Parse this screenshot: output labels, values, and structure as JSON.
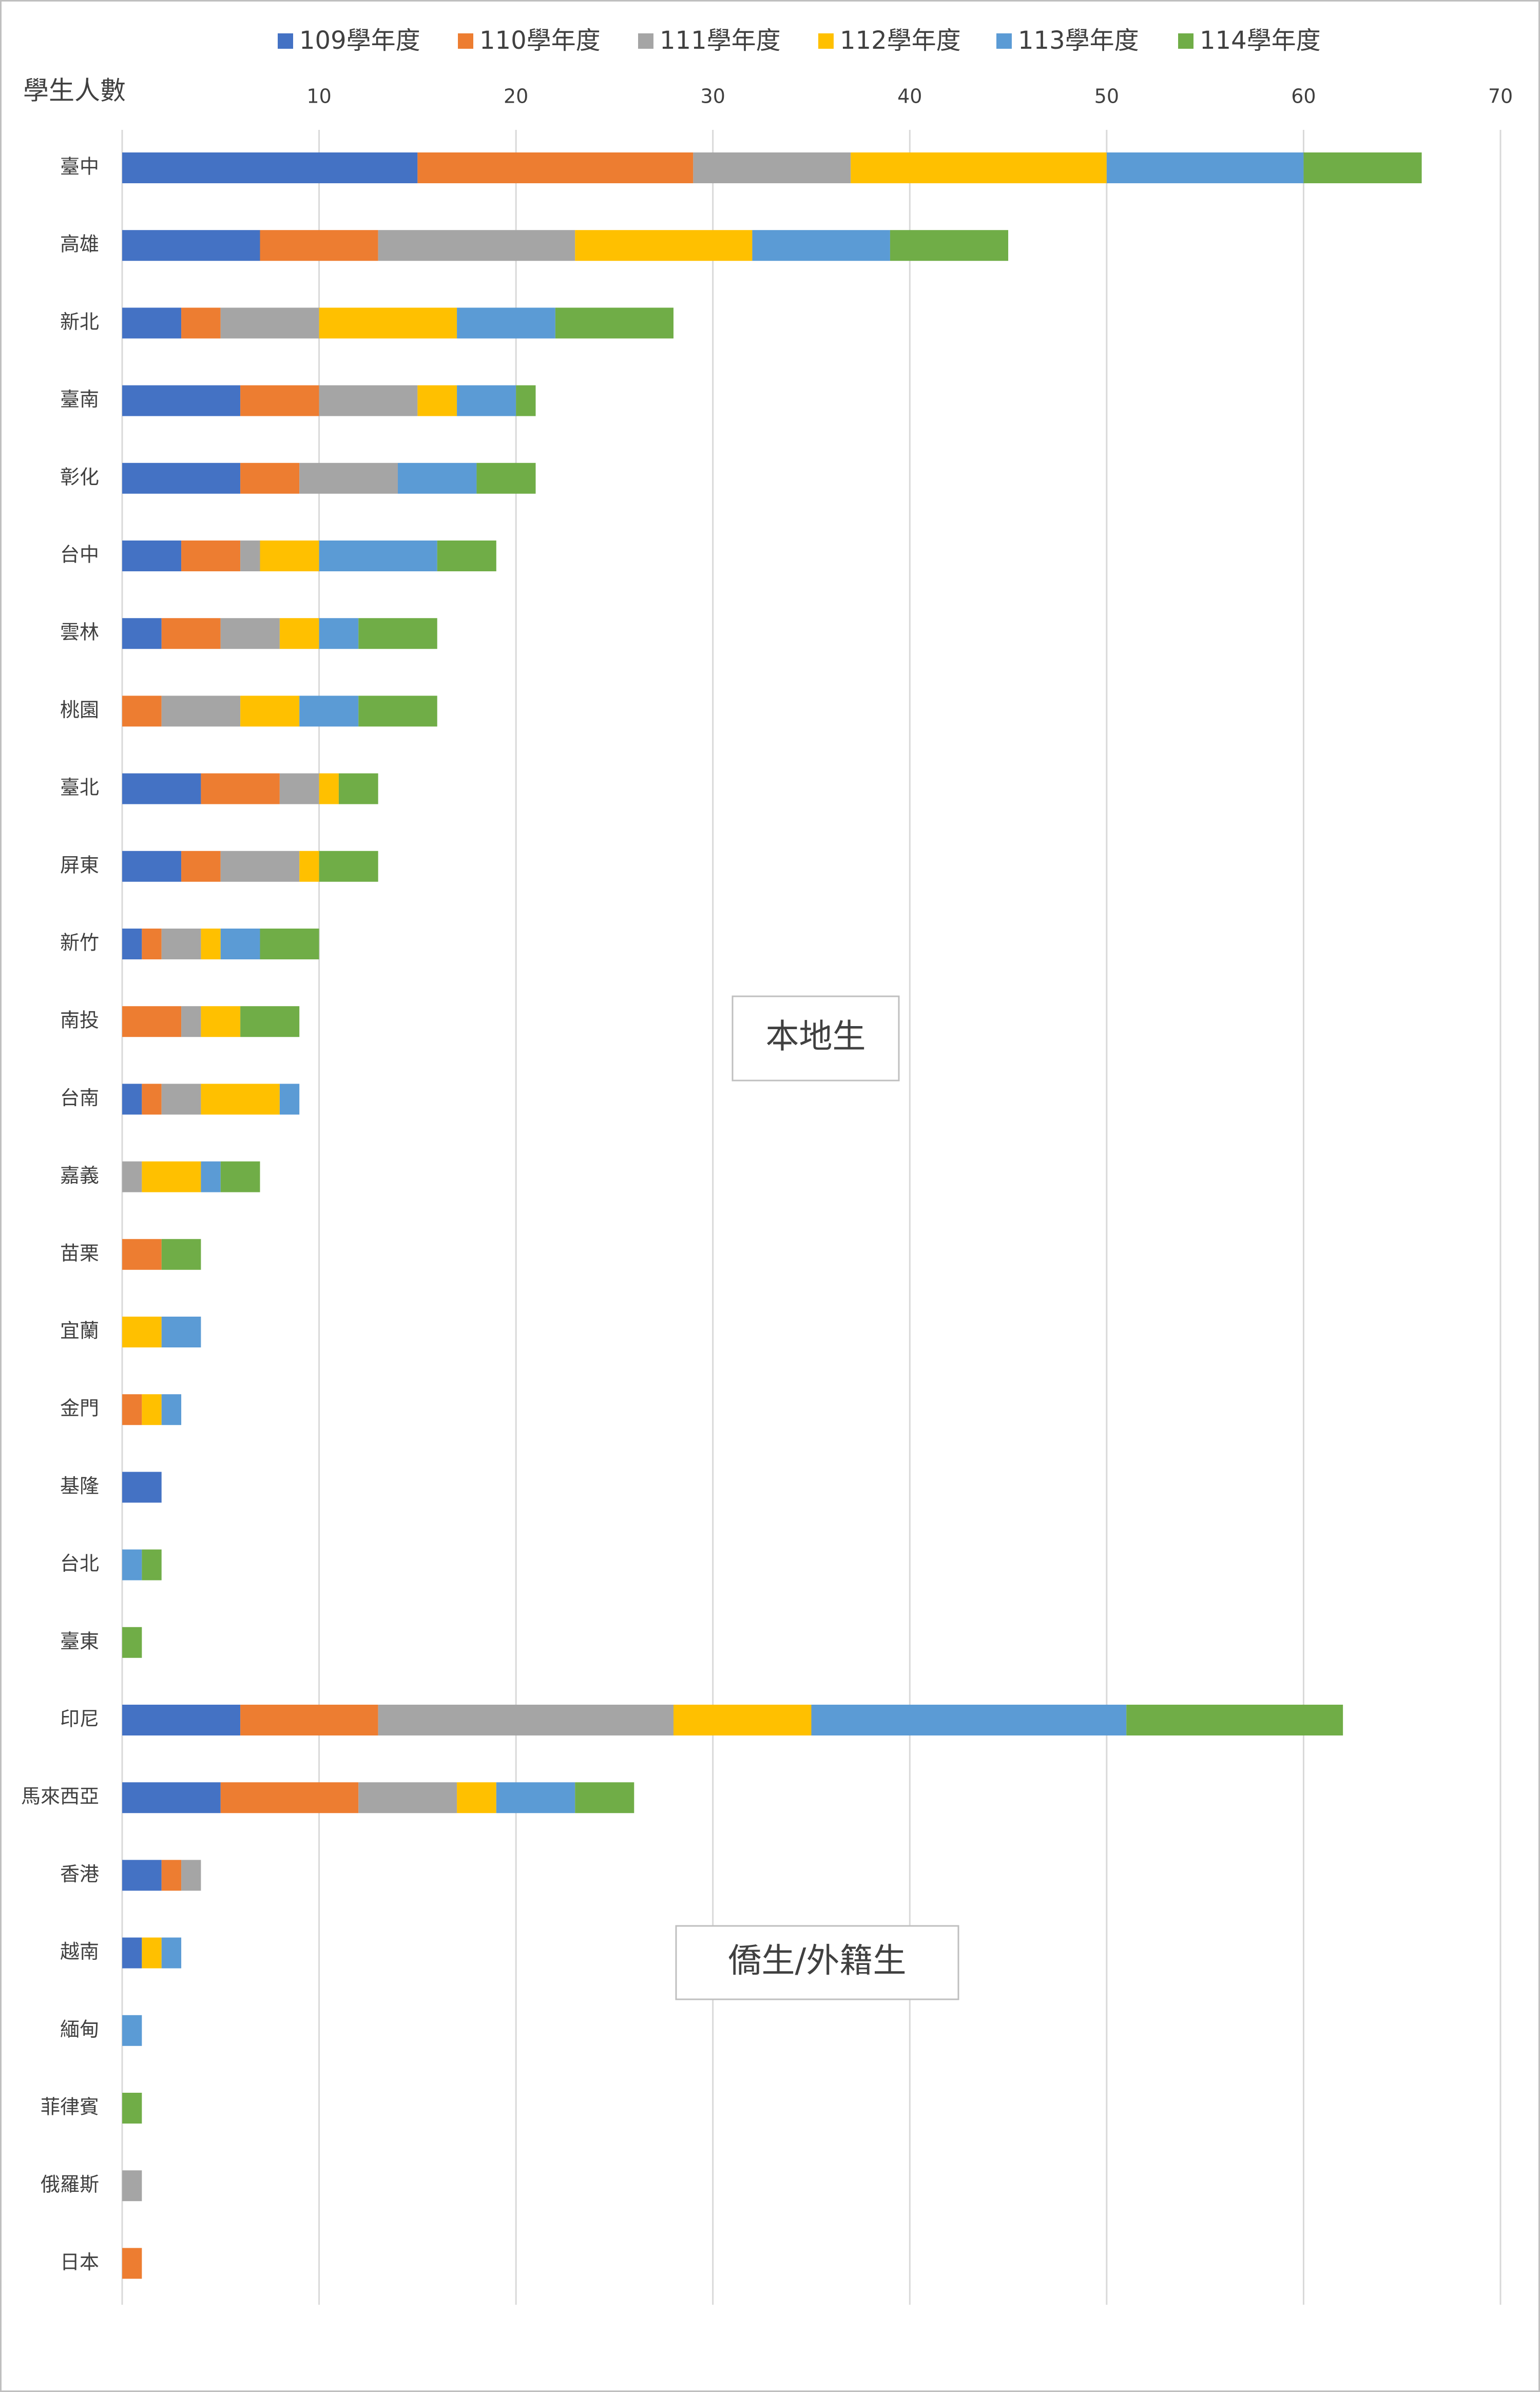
{
  "chart_data": {
    "type": "stacked_bar",
    "orientation": "horizontal",
    "axis_title": "學生人數",
    "categories": [
      "臺中",
      "高雄",
      "新北",
      "臺南",
      "彰化",
      "台中",
      "雲林",
      "桃園",
      "臺北",
      "屏東",
      "新竹",
      "南投",
      "台南",
      "嘉義",
      "苗栗",
      "宜蘭",
      "金門",
      "基隆",
      "台北",
      "臺東",
      "印尼",
      "馬來西亞",
      "香港",
      "越南",
      "緬甸",
      "菲律賓",
      "俄羅斯",
      "日本"
    ],
    "series": [
      {
        "name": "109學年度",
        "color": "#4472c4",
        "values": [
          15,
          7,
          3,
          6,
          6,
          3,
          2,
          0,
          4,
          3,
          1,
          0,
          1,
          0,
          0,
          0,
          0,
          2,
          0,
          0,
          6,
          5,
          2,
          1,
          0,
          0,
          0,
          0
        ]
      },
      {
        "name": "110學年度",
        "color": "#ed7d31",
        "values": [
          14,
          6,
          2,
          4,
          3,
          3,
          3,
          2,
          4,
          2,
          1,
          3,
          1,
          0,
          2,
          0,
          1,
          0,
          0,
          0,
          7,
          7,
          1,
          0,
          0,
          0,
          0,
          1
        ]
      },
      {
        "name": "111學年度",
        "color": "#a5a5a5",
        "values": [
          8,
          10,
          5,
          5,
          5,
          1,
          3,
          4,
          2,
          4,
          2,
          1,
          2,
          1,
          0,
          0,
          0,
          0,
          0,
          0,
          15,
          5,
          1,
          0,
          0,
          0,
          1,
          0
        ]
      },
      {
        "name": "112學年度",
        "color": "#ffc000",
        "values": [
          13,
          9,
          7,
          2,
          0,
          3,
          2,
          3,
          1,
          1,
          1,
          2,
          4,
          3,
          0,
          2,
          1,
          0,
          0,
          0,
          7,
          2,
          0,
          1,
          0,
          0,
          0,
          0
        ]
      },
      {
        "name": "113學年度",
        "color": "#5b9bd5",
        "values": [
          10,
          7,
          5,
          3,
          4,
          6,
          2,
          3,
          0,
          0,
          2,
          0,
          1,
          1,
          0,
          2,
          1,
          0,
          1,
          0,
          16,
          4,
          0,
          1,
          1,
          0,
          0,
          0
        ]
      },
      {
        "name": "114學年度",
        "color": "#70ad47",
        "values": [
          6,
          6,
          6,
          1,
          3,
          3,
          4,
          4,
          2,
          3,
          3,
          3,
          0,
          2,
          2,
          0,
          0,
          0,
          1,
          1,
          11,
          3,
          0,
          0,
          0,
          1,
          0,
          0
        ]
      }
    ],
    "xlim": [
      0,
      70
    ],
    "xticks": [
      10,
      20,
      30,
      40,
      50,
      60,
      70
    ],
    "grid": true,
    "legend": "top",
    "annotations": [
      "本地生",
      "僑生/外籍生"
    ]
  }
}
